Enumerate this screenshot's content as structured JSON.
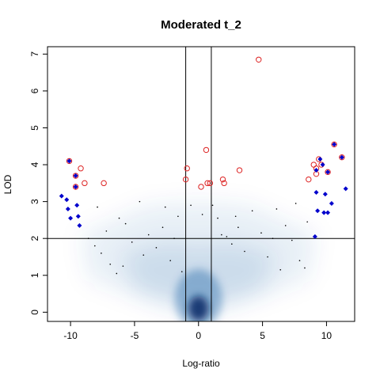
{
  "chart_data": {
    "type": "scatter",
    "title": "Moderated t_2",
    "xlabel": "Log-ratio",
    "ylabel": "LOD",
    "xlim": [
      -11.8,
      12.2
    ],
    "ylim": [
      -0.25,
      7.2
    ],
    "x_ticks": [
      -10,
      -5,
      0,
      5,
      10
    ],
    "y_ticks": [
      0,
      1,
      2,
      3,
      4,
      5,
      6,
      7
    ],
    "reference_lines": {
      "vertical": [
        -1,
        1
      ],
      "horizontal": [
        2
      ]
    },
    "density_background": {
      "description": "smoothed point density",
      "color": "#08519c"
    },
    "series": [
      {
        "marker": "circle-open",
        "color": "#dd2222",
        "points": [
          [
            -10.1,
            4.1
          ],
          [
            -9.6,
            3.7
          ],
          [
            -9.6,
            3.4
          ],
          [
            -9.2,
            3.9
          ],
          [
            -8.9,
            3.5
          ],
          [
            -7.4,
            3.5
          ],
          [
            -1.0,
            3.6
          ],
          [
            -0.9,
            3.9
          ],
          [
            0.2,
            3.4
          ],
          [
            0.6,
            4.4
          ],
          [
            0.7,
            3.5
          ],
          [
            0.9,
            3.5
          ],
          [
            1.9,
            3.6
          ],
          [
            2.0,
            3.5
          ],
          [
            3.2,
            3.85
          ],
          [
            4.7,
            6.85
          ],
          [
            8.6,
            3.6
          ],
          [
            9.0,
            4.0
          ],
          [
            9.2,
            3.9
          ],
          [
            9.2,
            3.75
          ],
          [
            9.4,
            4.15
          ],
          [
            9.6,
            4.0
          ],
          [
            10.1,
            3.8
          ],
          [
            10.6,
            4.55
          ],
          [
            11.2,
            4.2
          ]
        ]
      },
      {
        "marker": "diamond",
        "color": "#0000cc",
        "points": [
          [
            -10.7,
            3.15
          ],
          [
            -10.3,
            3.05
          ],
          [
            -10.2,
            2.8
          ],
          [
            -10.0,
            2.55
          ],
          [
            -9.5,
            2.9
          ],
          [
            -9.4,
            2.6
          ],
          [
            -9.3,
            2.35
          ],
          [
            -10.1,
            4.1
          ],
          [
            -9.6,
            3.7
          ],
          [
            -9.6,
            3.4
          ],
          [
            9.1,
            2.05
          ],
          [
            9.2,
            3.25
          ],
          [
            9.3,
            2.75
          ],
          [
            9.5,
            4.15
          ],
          [
            9.7,
            4.0
          ],
          [
            9.8,
            2.7
          ],
          [
            9.9,
            3.2
          ],
          [
            10.1,
            2.7
          ],
          [
            10.1,
            3.8
          ],
          [
            10.4,
            2.95
          ],
          [
            10.6,
            4.55
          ],
          [
            11.2,
            4.2
          ],
          [
            11.5,
            3.35
          ],
          [
            9.2,
            3.85
          ]
        ]
      },
      {
        "marker": "dot",
        "color": "#000000",
        "points": [
          [
            -8.6,
            2.0
          ],
          [
            -8.1,
            1.8
          ],
          [
            -7.6,
            1.6
          ],
          [
            -7.2,
            2.2
          ],
          [
            -6.9,
            1.3
          ],
          [
            -6.4,
            1.05
          ],
          [
            -5.7,
            2.4
          ],
          [
            -5.2,
            1.9
          ],
          [
            -4.6,
            3.0
          ],
          [
            -3.9,
            2.1
          ],
          [
            -3.3,
            1.75
          ],
          [
            -2.8,
            2.3
          ],
          [
            -2.2,
            1.4
          ],
          [
            -1.6,
            2.6
          ],
          [
            -1.3,
            1.1
          ],
          [
            -0.6,
            2.9
          ],
          [
            0.3,
            2.65
          ],
          [
            1.1,
            2.9
          ],
          [
            1.5,
            2.55
          ],
          [
            2.2,
            2.05
          ],
          [
            2.6,
            1.85
          ],
          [
            3.1,
            2.3
          ],
          [
            3.6,
            1.65
          ],
          [
            4.2,
            2.75
          ],
          [
            4.9,
            2.15
          ],
          [
            5.4,
            1.5
          ],
          [
            6.1,
            2.8
          ],
          [
            6.8,
            2.35
          ],
          [
            7.3,
            1.95
          ],
          [
            7.9,
            1.4
          ],
          [
            8.3,
            1.2
          ],
          [
            8.5,
            2.45
          ],
          [
            -7.9,
            2.85
          ],
          [
            -6.2,
            2.55
          ],
          [
            -4.3,
            1.55
          ],
          [
            7.6,
            2.95
          ],
          [
            5.8,
            2.0
          ],
          [
            -2.6,
            2.85
          ],
          [
            2.9,
            2.6
          ],
          [
            -5.9,
            1.25
          ],
          [
            6.4,
            1.15
          ],
          [
            -1.9,
            2.0
          ],
          [
            1.8,
            2.1
          ]
        ]
      }
    ]
  }
}
